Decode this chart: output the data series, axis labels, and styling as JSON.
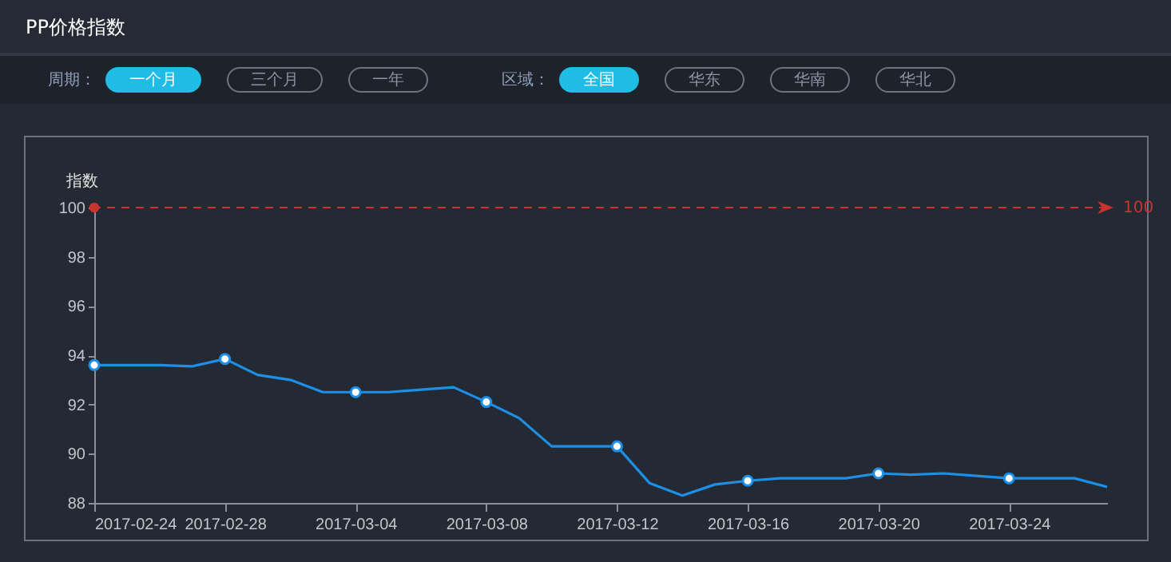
{
  "chart_data": {
    "type": "line",
    "title": "PP价格指数",
    "ylabel": "指数",
    "annotations": [
      "周期：",
      "一个月",
      "三个月",
      "一年",
      "区域：",
      "全国",
      "华东",
      "华南",
      "华北"
    ],
    "x": [
      "2017-02-24",
      "2017-02-25",
      "2017-02-26",
      "2017-02-27",
      "2017-02-28",
      "2017-03-01",
      "2017-03-02",
      "2017-03-03",
      "2017-03-04",
      "2017-03-05",
      "2017-03-06",
      "2017-03-07",
      "2017-03-08",
      "2017-03-09",
      "2017-03-10",
      "2017-03-11",
      "2017-03-12",
      "2017-03-13",
      "2017-03-14",
      "2017-03-15",
      "2017-03-16",
      "2017-03-17",
      "2017-03-18",
      "2017-03-19",
      "2017-03-20",
      "2017-03-21",
      "2017-03-22",
      "2017-03-23",
      "2017-03-24",
      "2017-03-25",
      "2017-03-26",
      "2017-03-27"
    ],
    "series": [
      {
        "color": "#1e8fe6",
        "values": [
          93.6,
          93.6,
          93.6,
          93.55,
          93.85,
          93.2,
          93.0,
          92.5,
          92.5,
          92.5,
          92.6,
          92.7,
          92.1,
          91.45,
          90.3,
          90.3,
          90.3,
          88.8,
          88.3,
          88.75,
          88.9,
          89.0,
          89.0,
          89.0,
          89.2,
          89.15,
          89.2,
          89.1,
          89.0,
          89.0,
          89.0,
          88.65
        ]
      },
      {
        "type": "scatter",
        "color": "#1e8fe6",
        "marker": "circle",
        "x": [
          "2017-02-24",
          "2017-02-28",
          "2017-03-04",
          "2017-03-08",
          "2017-03-12",
          "2017-03-16",
          "2017-03-20",
          "2017-03-24"
        ],
        "values": [
          93.6,
          93.85,
          92.5,
          92.1,
          90.3,
          88.9,
          89.2,
          89.0
        ]
      }
    ],
    "marker": "none",
    "xlim": [
      "2017-02-24",
      "2017-03-27"
    ],
    "xticks": [
      "2017-02-24",
      "2017-02-28",
      "2017-03-04",
      "2017-03-08",
      "2017-03-12",
      "2017-03-16",
      "2017-03-20",
      "2017-03-24"
    ],
    "ylim": [
      88,
      100
    ],
    "yticks": [
      88,
      90,
      92,
      94,
      96,
      98,
      100
    ],
    "ref_lines": [
      {
        "axis": "y",
        "value": 100,
        "label": "100",
        "color": "#c8322f",
        "line_style": "dashed"
      }
    ]
  }
}
